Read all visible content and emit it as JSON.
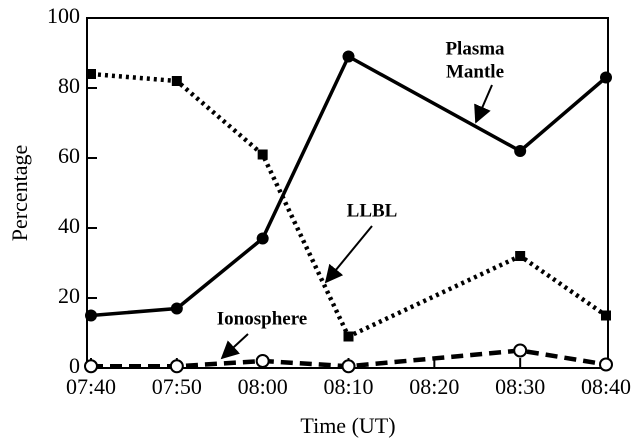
{
  "chart_data": {
    "type": "line",
    "xlabel": "Time (UT)",
    "ylabel": "Percentage",
    "xlim": [
      "07:40",
      "08:40"
    ],
    "xticks": [
      "07:40",
      "07:50",
      "08:00",
      "08:10",
      "08:20",
      "08:30",
      "08:40"
    ],
    "ylim": [
      0,
      100
    ],
    "yticks": [
      0,
      20,
      40,
      60,
      80,
      100
    ],
    "x": [
      "07:40",
      "07:50",
      "08:00",
      "08:10",
      "08:30",
      "08:40"
    ],
    "series": [
      {
        "name": "Plasma Mantle",
        "color": "#000000",
        "style": "solid",
        "marker": "circle",
        "values": [
          15,
          17,
          37,
          89,
          62,
          83
        ]
      },
      {
        "name": "LLBL",
        "color": "#000000",
        "style": "dotted",
        "marker": "square",
        "values": [
          84,
          82,
          61,
          9,
          32,
          15
        ]
      },
      {
        "name": "Ionosphere",
        "color": "#000000",
        "style": "dashed",
        "marker": "open-circle",
        "values": [
          0.5,
          0.5,
          2,
          0.5,
          5,
          1
        ]
      }
    ],
    "annotations": [
      {
        "text": [
          "Plasma",
          "Mantle"
        ]
      },
      {
        "text": [
          "LLBL"
        ]
      },
      {
        "text": [
          "Ionosphere"
        ]
      }
    ]
  }
}
